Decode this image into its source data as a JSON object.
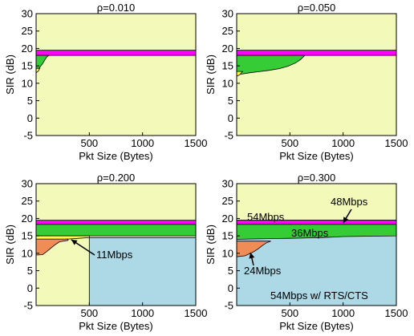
{
  "chart_data": [
    {
      "type": "area",
      "title": "ρ=0.010",
      "xlabel": "Pkt Size (Bytes)",
      "ylabel": "SIR (dB)",
      "xlim": [
        0,
        1500
      ],
      "ylim": [
        -5,
        30
      ],
      "xticks": [
        500,
        1000,
        1500
      ],
      "yticks": [
        -5,
        0,
        5,
        10,
        15,
        20,
        25,
        30
      ],
      "grid": false,
      "background_color": "#f3f9b8",
      "regions": [
        {
          "color": "#ff00ff",
          "points": [
            [
              0,
              18
            ],
            [
              1500,
              18
            ],
            [
              1500,
              19.5
            ],
            [
              0,
              19.5
            ]
          ]
        },
        {
          "color": "#35cc35",
          "points": [
            [
              0,
              13
            ],
            [
              30,
              14.4
            ],
            [
              60,
              15.6
            ],
            [
              80,
              16.6
            ],
            [
              100,
              17.6
            ],
            [
              120,
              18
            ],
            [
              0,
              18
            ]
          ]
        },
        {
          "color": "#ffff33",
          "points": [
            [
              0,
              13
            ],
            [
              20,
              13.5
            ],
            [
              35,
              14.3
            ],
            [
              0,
              14.3
            ]
          ]
        }
      ],
      "annotations": []
    },
    {
      "type": "area",
      "title": "ρ=0.050",
      "xlabel": "Pkt Size (Bytes)",
      "ylabel": "SIR (dB)",
      "xlim": [
        0,
        1500
      ],
      "ylim": [
        -5,
        30
      ],
      "xticks": [
        500,
        1000,
        1500
      ],
      "yticks": [
        -5,
        0,
        5,
        10,
        15,
        20,
        25,
        30
      ],
      "grid": false,
      "background_color": "#f3f9b8",
      "regions": [
        {
          "color": "#ff00ff",
          "points": [
            [
              0,
              18
            ],
            [
              1500,
              18
            ],
            [
              1500,
              19.5
            ],
            [
              0,
              19.5
            ]
          ]
        },
        {
          "color": "#35cc35",
          "points": [
            [
              0,
              12.5
            ],
            [
              60,
              12.7
            ],
            [
              120,
              13
            ],
            [
              200,
              13.3
            ],
            [
              300,
              13.7
            ],
            [
              400,
              14.2
            ],
            [
              480,
              14.9
            ],
            [
              550,
              15.8
            ],
            [
              600,
              16.8
            ],
            [
              640,
              18
            ],
            [
              0,
              18
            ]
          ]
        },
        {
          "color": "#ffff33",
          "points": [
            [
              0,
              12
            ],
            [
              30,
              12.5
            ],
            [
              55,
              13.4
            ],
            [
              0,
              13.4
            ]
          ]
        }
      ],
      "annotations": []
    },
    {
      "type": "area",
      "title": "ρ=0.200",
      "xlabel": "Pkt Size (Bytes)",
      "ylabel": "SIR (dB)",
      "xlim": [
        0,
        1500
      ],
      "ylim": [
        -5,
        30
      ],
      "xticks": [
        500,
        1000,
        1500
      ],
      "yticks": [
        -5,
        0,
        5,
        10,
        15,
        20,
        25,
        30
      ],
      "grid": false,
      "background_color": "#f3f9b8",
      "regions": [
        {
          "color": "#add8e6",
          "points": [
            [
              500,
              -5
            ],
            [
              1500,
              -5
            ],
            [
              1500,
              14.5
            ],
            [
              500,
              14.5
            ]
          ]
        },
        {
          "color": "#ff00ff",
          "points": [
            [
              0,
              18.3
            ],
            [
              1500,
              18.3
            ],
            [
              1500,
              19.5
            ],
            [
              0,
              19.5
            ]
          ]
        },
        {
          "color": "#35cc35",
          "points": [
            [
              0,
              15
            ],
            [
              1500,
              15
            ],
            [
              1500,
              18.3
            ],
            [
              0,
              18.3
            ]
          ]
        },
        {
          "color": "#ffff33",
          "points": [
            [
              0,
              13.4
            ],
            [
              300,
              14.1
            ],
            [
              400,
              14.3
            ],
            [
              500,
              14.5
            ],
            [
              500,
              15
            ],
            [
              0,
              15
            ]
          ]
        },
        {
          "color": "#f08c55",
          "points": [
            [
              0,
              9.5
            ],
            [
              60,
              9.6
            ],
            [
              100,
              10.5
            ],
            [
              140,
              11.5
            ],
            [
              180,
              12.5
            ],
            [
              220,
              13.3
            ],
            [
              300,
              13.7
            ],
            [
              300,
              14.1
            ],
            [
              0,
              14.1
            ]
          ]
        }
      ],
      "annotations": [
        {
          "text": "11Mbps",
          "arrow_to": [
            330,
            13.9
          ]
        }
      ]
    },
    {
      "type": "area",
      "title": "ρ=0.300",
      "xlabel": "Pkt Size (Bytes)",
      "ylabel": "SIR (dB)",
      "xlim": [
        0,
        1500
      ],
      "ylim": [
        -5,
        30
      ],
      "xticks": [
        500,
        1000,
        1500
      ],
      "yticks": [
        -5,
        0,
        5,
        10,
        15,
        20,
        25,
        30
      ],
      "grid": false,
      "background_color": "#add8e6",
      "regions": [
        {
          "color": "#f3f9b8",
          "points": [
            [
              0,
              19.5
            ],
            [
              1500,
              19.5
            ],
            [
              1500,
              30
            ],
            [
              0,
              30
            ]
          ]
        },
        {
          "color": "#ff00ff",
          "points": [
            [
              0,
              18.3
            ],
            [
              1500,
              18.3
            ],
            [
              1500,
              19.5
            ],
            [
              0,
              19.5
            ]
          ]
        },
        {
          "color": "#35cc35",
          "points": [
            [
              0,
              14
            ],
            [
              100,
              14.1
            ],
            [
              300,
              14.2
            ],
            [
              500,
              14.3
            ],
            [
              800,
              14.5
            ],
            [
              1000,
              14.8
            ],
            [
              1200,
              14.9
            ],
            [
              1500,
              15
            ],
            [
              1500,
              18.3
            ],
            [
              0,
              18.3
            ]
          ]
        },
        {
          "color": "#f08c55",
          "points": [
            [
              0,
              9
            ],
            [
              80,
              9.3
            ],
            [
              150,
              10.3
            ],
            [
              200,
              11.2
            ],
            [
              240,
              12.2
            ],
            [
              280,
              13
            ],
            [
              320,
              13.5
            ],
            [
              0,
              13.5
            ]
          ]
        }
      ],
      "annotations": [
        {
          "text": "54Mbps"
        },
        {
          "text": "48Mbps",
          "arrow_to": [
            1000,
            18.7
          ]
        },
        {
          "text": "36Mbps"
        },
        {
          "text": "24Mbps",
          "arrow_to": [
            130,
            10.2
          ]
        },
        {
          "text": "54Mbps w/ RTS/CTS"
        }
      ]
    }
  ]
}
